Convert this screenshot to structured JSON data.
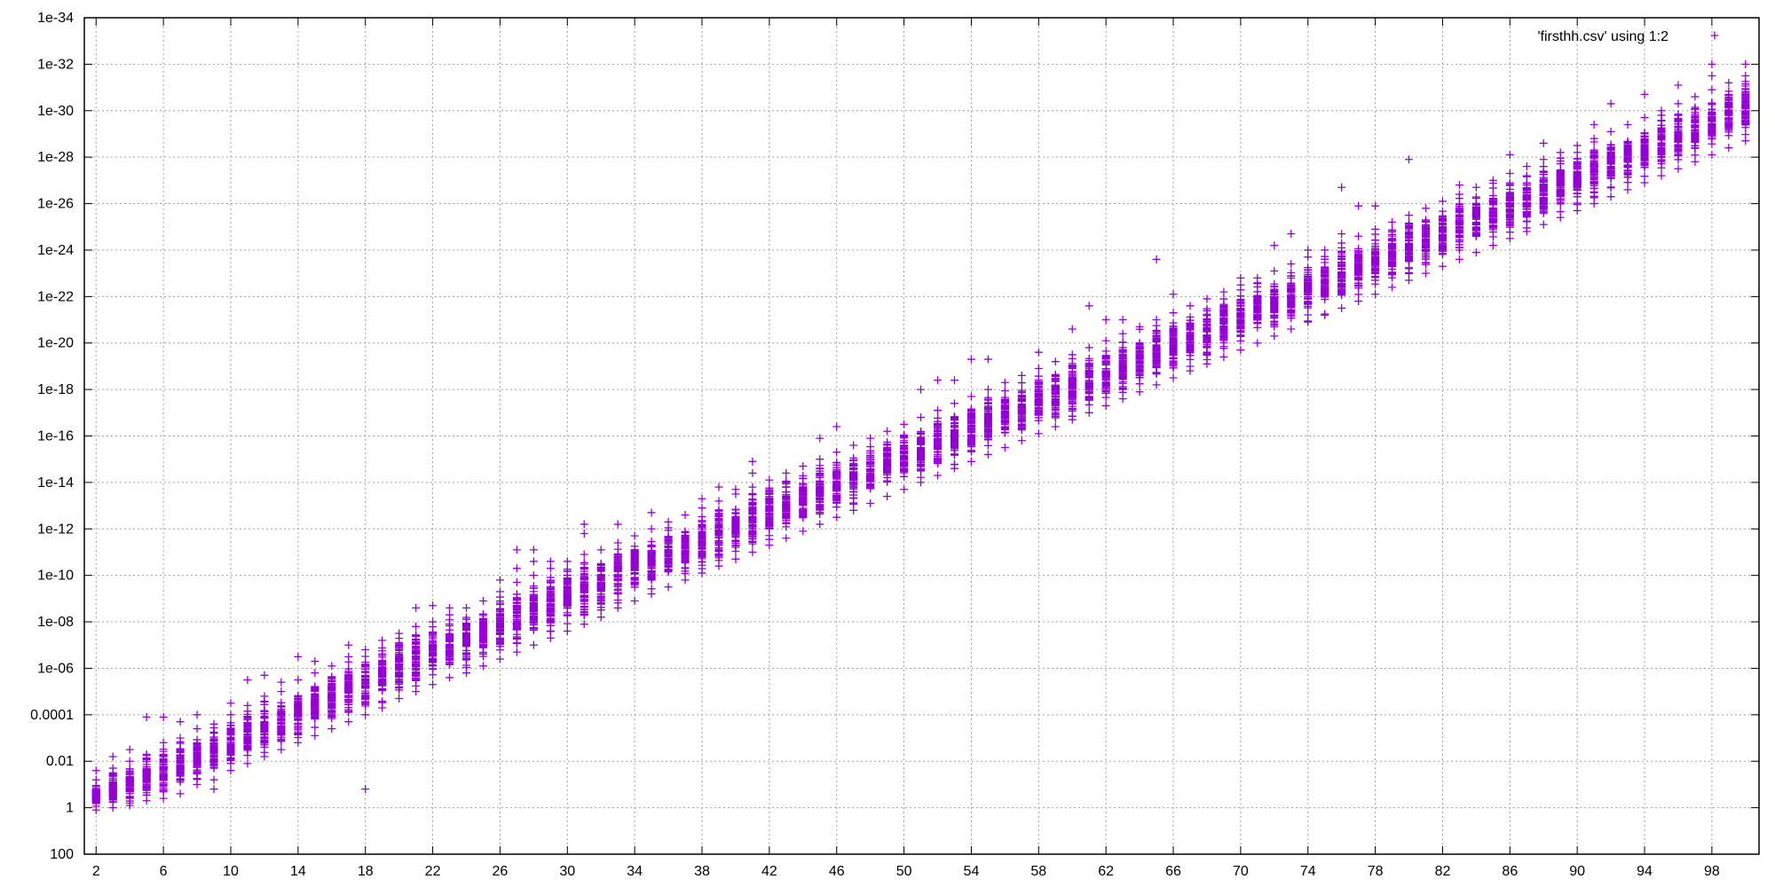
{
  "chart_data": {
    "type": "scatter",
    "ylog": true,
    "grid": true,
    "legend_position": "top-right",
    "xlim": [
      1.3,
      100.8
    ],
    "ylim_exponents": [
      -34,
      2
    ],
    "x_ticks": [
      2,
      6,
      10,
      14,
      18,
      22,
      26,
      30,
      34,
      38,
      42,
      46,
      50,
      54,
      58,
      62,
      66,
      70,
      74,
      78,
      82,
      86,
      90,
      94,
      98
    ],
    "x_tick_labels": [
      "2",
      "6",
      "10",
      "14",
      "18",
      "22",
      "26",
      "30",
      "34",
      "38",
      "42",
      "46",
      "50",
      "54",
      "58",
      "62",
      "66",
      "70",
      "74",
      "78",
      "82",
      "86",
      "90",
      "94",
      "98"
    ],
    "y_ticks": [
      {
        "exp": 2,
        "label": "100"
      },
      {
        "exp": 0,
        "label": "1"
      },
      {
        "exp": -2,
        "label": "0.01"
      },
      {
        "exp": -4,
        "label": "0.0001"
      },
      {
        "exp": -6,
        "label": "1e-06"
      },
      {
        "exp": -8,
        "label": "1e-08"
      },
      {
        "exp": -10,
        "label": "1e-10"
      },
      {
        "exp": -12,
        "label": "1e-12"
      },
      {
        "exp": -14,
        "label": "1e-14"
      },
      {
        "exp": -16,
        "label": "1e-16"
      },
      {
        "exp": -18,
        "label": "1e-18"
      },
      {
        "exp": -20,
        "label": "1e-20"
      },
      {
        "exp": -22,
        "label": "1e-22"
      },
      {
        "exp": -24,
        "label": "1e-24"
      },
      {
        "exp": -26,
        "label": "1e-26"
      },
      {
        "exp": -28,
        "label": "1e-28"
      },
      {
        "exp": -30,
        "label": "1e-30"
      },
      {
        "exp": -32,
        "label": "1e-32"
      },
      {
        "exp": -34,
        "label": "1e-34"
      }
    ],
    "series": [
      {
        "name": "'firsthh.csv' using 1:2",
        "color": "#9400d3",
        "marker": "plus",
        "clusters": [
          {
            "x": 2,
            "lo": -1.2,
            "hi": 0.1,
            "outliers": [
              -1.6
            ]
          },
          {
            "x": 3,
            "lo": -1.7,
            "hi": 0.0,
            "outliers": [
              -2.2
            ]
          },
          {
            "x": 4,
            "lo": -2.0,
            "hi": -0.1,
            "outliers": [
              -2.5
            ]
          },
          {
            "x": 5,
            "lo": -2.3,
            "hi": -0.3,
            "outliers": [
              -3.9
            ]
          },
          {
            "x": 6,
            "lo": -2.8,
            "hi": -0.4,
            "outliers": [
              -3.9
            ]
          },
          {
            "x": 7,
            "lo": -3.0,
            "hi": -0.6,
            "outliers": [
              -3.7
            ]
          },
          {
            "x": 8,
            "lo": -3.4,
            "hi": -1.0,
            "outliers": [
              -4.0
            ]
          },
          {
            "x": 9,
            "lo": -3.6,
            "hi": -1.2,
            "outliers": [
              -0.8
            ]
          },
          {
            "x": 10,
            "lo": -4.0,
            "hi": -1.6,
            "outliers": [
              -4.5
            ]
          },
          {
            "x": 11,
            "lo": -4.4,
            "hi": -1.9,
            "outliers": [
              -5.5
            ]
          },
          {
            "x": 12,
            "lo": -4.8,
            "hi": -2.2,
            "outliers": [
              -5.7
            ]
          },
          {
            "x": 13,
            "lo": -5.0,
            "hi": -2.5,
            "outliers": [
              -5.4
            ]
          },
          {
            "x": 14,
            "lo": -5.5,
            "hi": -2.8,
            "outliers": [
              -6.5
            ]
          },
          {
            "x": 15,
            "lo": -5.8,
            "hi": -3.1,
            "outliers": [
              -6.3
            ]
          },
          {
            "x": 16,
            "lo": -6.1,
            "hi": -3.4,
            "outliers": []
          },
          {
            "x": 17,
            "lo": -6.5,
            "hi": -3.7,
            "outliers": [
              -7.0
            ]
          },
          {
            "x": 18,
            "lo": -6.8,
            "hi": -4.0,
            "outliers": [
              -0.8
            ]
          },
          {
            "x": 19,
            "lo": -7.2,
            "hi": -4.3,
            "outliers": []
          },
          {
            "x": 20,
            "lo": -7.5,
            "hi": -4.7,
            "outliers": []
          },
          {
            "x": 21,
            "lo": -7.8,
            "hi": -5.0,
            "outliers": [
              -8.6
            ]
          },
          {
            "x": 22,
            "lo": -8.0,
            "hi": -5.3,
            "outliers": [
              -8.7
            ]
          },
          {
            "x": 23,
            "lo": -8.3,
            "hi": -5.6,
            "outliers": [
              -8.6
            ]
          },
          {
            "x": 24,
            "lo": -8.6,
            "hi": -5.8,
            "outliers": []
          },
          {
            "x": 25,
            "lo": -8.9,
            "hi": -6.1,
            "outliers": []
          },
          {
            "x": 26,
            "lo": -9.3,
            "hi": -6.4,
            "outliers": [
              -9.8
            ]
          },
          {
            "x": 27,
            "lo": -9.7,
            "hi": -6.7,
            "outliers": [
              -10.3,
              -11.1
            ]
          },
          {
            "x": 28,
            "lo": -10.0,
            "hi": -7.0,
            "outliers": [
              -10.6,
              -11.1
            ]
          },
          {
            "x": 29,
            "lo": -10.3,
            "hi": -7.3,
            "outliers": [
              -10.6
            ]
          },
          {
            "x": 30,
            "lo": -10.6,
            "hi": -7.6,
            "outliers": []
          },
          {
            "x": 31,
            "lo": -10.9,
            "hi": -7.9,
            "outliers": [
              -12.2,
              -11.8
            ]
          },
          {
            "x": 32,
            "lo": -11.1,
            "hi": -8.2,
            "outliers": []
          },
          {
            "x": 33,
            "lo": -11.4,
            "hi": -8.6,
            "outliers": [
              -12.2
            ]
          },
          {
            "x": 34,
            "lo": -11.7,
            "hi": -8.9,
            "outliers": []
          },
          {
            "x": 35,
            "lo": -12.0,
            "hi": -9.2,
            "outliers": [
              -12.7
            ]
          },
          {
            "x": 36,
            "lo": -12.3,
            "hi": -9.5,
            "outliers": []
          },
          {
            "x": 37,
            "lo": -12.6,
            "hi": -9.8,
            "outliers": []
          },
          {
            "x": 38,
            "lo": -12.9,
            "hi": -10.1,
            "outliers": [
              -13.3
            ]
          },
          {
            "x": 39,
            "lo": -13.2,
            "hi": -10.4,
            "outliers": [
              -13.8
            ]
          },
          {
            "x": 40,
            "lo": -13.5,
            "hi": -10.7,
            "outliers": [
              -13.7
            ]
          },
          {
            "x": 41,
            "lo": -13.8,
            "hi": -11.0,
            "outliers": [
              -14.4,
              -14.9
            ]
          },
          {
            "x": 42,
            "lo": -14.1,
            "hi": -11.3,
            "outliers": []
          },
          {
            "x": 43,
            "lo": -14.4,
            "hi": -11.6,
            "outliers": []
          },
          {
            "x": 44,
            "lo": -14.7,
            "hi": -11.9,
            "outliers": []
          },
          {
            "x": 45,
            "lo": -15.0,
            "hi": -12.2,
            "outliers": [
              -15.9
            ]
          },
          {
            "x": 46,
            "lo": -15.3,
            "hi": -12.5,
            "outliers": [
              -16.4
            ]
          },
          {
            "x": 47,
            "lo": -15.6,
            "hi": -12.8,
            "outliers": []
          },
          {
            "x": 48,
            "lo": -15.9,
            "hi": -13.1,
            "outliers": []
          },
          {
            "x": 49,
            "lo": -16.2,
            "hi": -13.4,
            "outliers": []
          },
          {
            "x": 50,
            "lo": -16.5,
            "hi": -13.7,
            "outliers": []
          },
          {
            "x": 51,
            "lo": -16.8,
            "hi": -14.0,
            "outliers": [
              -18.0
            ]
          },
          {
            "x": 52,
            "lo": -17.1,
            "hi": -14.3,
            "outliers": [
              -18.4
            ]
          },
          {
            "x": 53,
            "lo": -17.4,
            "hi": -14.6,
            "outliers": [
              -18.4
            ]
          },
          {
            "x": 54,
            "lo": -17.7,
            "hi": -14.9,
            "outliers": [
              -19.3
            ]
          },
          {
            "x": 55,
            "lo": -18.0,
            "hi": -15.2,
            "outliers": [
              -19.3
            ]
          },
          {
            "x": 56,
            "lo": -18.3,
            "hi": -15.5,
            "outliers": []
          },
          {
            "x": 57,
            "lo": -18.6,
            "hi": -15.8,
            "outliers": []
          },
          {
            "x": 58,
            "lo": -18.9,
            "hi": -16.1,
            "outliers": [
              -19.6
            ]
          },
          {
            "x": 59,
            "lo": -19.2,
            "hi": -16.4,
            "outliers": []
          },
          {
            "x": 60,
            "lo": -19.5,
            "hi": -16.7,
            "outliers": [
              -20.6
            ]
          },
          {
            "x": 61,
            "lo": -19.8,
            "hi": -17.0,
            "outliers": [
              -21.6
            ]
          },
          {
            "x": 62,
            "lo": -20.1,
            "hi": -17.3,
            "outliers": [
              -21.0
            ]
          },
          {
            "x": 63,
            "lo": -20.4,
            "hi": -17.6,
            "outliers": [
              -21.0
            ]
          },
          {
            "x": 64,
            "lo": -20.7,
            "hi": -17.9,
            "outliers": []
          },
          {
            "x": 65,
            "lo": -21.0,
            "hi": -18.2,
            "outliers": [
              -23.6
            ]
          },
          {
            "x": 66,
            "lo": -21.3,
            "hi": -18.5,
            "outliers": [
              -22.1
            ]
          },
          {
            "x": 67,
            "lo": -21.6,
            "hi": -18.8,
            "outliers": []
          },
          {
            "x": 68,
            "lo": -21.9,
            "hi": -19.1,
            "outliers": []
          },
          {
            "x": 69,
            "lo": -22.2,
            "hi": -19.4,
            "outliers": []
          },
          {
            "x": 70,
            "lo": -22.5,
            "hi": -19.7,
            "outliers": [
              -22.8
            ]
          },
          {
            "x": 71,
            "lo": -22.8,
            "hi": -20.0,
            "outliers": []
          },
          {
            "x": 72,
            "lo": -23.1,
            "hi": -20.3,
            "outliers": [
              -24.2
            ]
          },
          {
            "x": 73,
            "lo": -23.4,
            "hi": -20.6,
            "outliers": [
              -24.7
            ]
          },
          {
            "x": 74,
            "lo": -23.7,
            "hi": -20.9,
            "outliers": [
              -24.0
            ]
          },
          {
            "x": 75,
            "lo": -24.0,
            "hi": -21.2,
            "outliers": []
          },
          {
            "x": 76,
            "lo": -24.3,
            "hi": -21.5,
            "outliers": [
              -26.7,
              -24.7
            ]
          },
          {
            "x": 77,
            "lo": -24.6,
            "hi": -21.8,
            "outliers": [
              -25.9
            ]
          },
          {
            "x": 78,
            "lo": -24.9,
            "hi": -22.1,
            "outliers": [
              -25.9
            ]
          },
          {
            "x": 79,
            "lo": -25.2,
            "hi": -22.4,
            "outliers": []
          },
          {
            "x": 80,
            "lo": -25.5,
            "hi": -22.7,
            "outliers": [
              -27.9
            ]
          },
          {
            "x": 81,
            "lo": -25.8,
            "hi": -23.0,
            "outliers": []
          },
          {
            "x": 82,
            "lo": -26.1,
            "hi": -23.3,
            "outliers": []
          },
          {
            "x": 83,
            "lo": -26.4,
            "hi": -23.6,
            "outliers": [
              -26.8
            ]
          },
          {
            "x": 84,
            "lo": -26.7,
            "hi": -23.9,
            "outliers": []
          },
          {
            "x": 85,
            "lo": -27.0,
            "hi": -24.2,
            "outliers": []
          },
          {
            "x": 86,
            "lo": -27.3,
            "hi": -24.5,
            "outliers": [
              -28.1
            ]
          },
          {
            "x": 87,
            "lo": -27.6,
            "hi": -24.8,
            "outliers": []
          },
          {
            "x": 88,
            "lo": -27.9,
            "hi": -25.1,
            "outliers": [
              -28.6
            ]
          },
          {
            "x": 89,
            "lo": -28.2,
            "hi": -25.4,
            "outliers": []
          },
          {
            "x": 90,
            "lo": -28.5,
            "hi": -25.7,
            "outliers": []
          },
          {
            "x": 91,
            "lo": -28.8,
            "hi": -26.0,
            "outliers": [
              -29.4
            ]
          },
          {
            "x": 92,
            "lo": -29.1,
            "hi": -26.3,
            "outliers": [
              -30.3
            ]
          },
          {
            "x": 93,
            "lo": -29.4,
            "hi": -26.6,
            "outliers": []
          },
          {
            "x": 94,
            "lo": -29.7,
            "hi": -26.9,
            "outliers": [
              -30.7
            ]
          },
          {
            "x": 95,
            "lo": -30.0,
            "hi": -27.2,
            "outliers": []
          },
          {
            "x": 96,
            "lo": -30.3,
            "hi": -27.5,
            "outliers": [
              -31.1
            ]
          },
          {
            "x": 97,
            "lo": -30.6,
            "hi": -27.8,
            "outliers": []
          },
          {
            "x": 98,
            "lo": -30.9,
            "hi": -28.1,
            "outliers": [
              -32.0,
              -31.5
            ]
          },
          {
            "x": 99,
            "lo": -31.2,
            "hi": -28.4,
            "outliers": []
          },
          {
            "x": 100,
            "lo": -31.5,
            "hi": -28.7,
            "outliers": [
              -32.0
            ]
          }
        ]
      }
    ]
  }
}
